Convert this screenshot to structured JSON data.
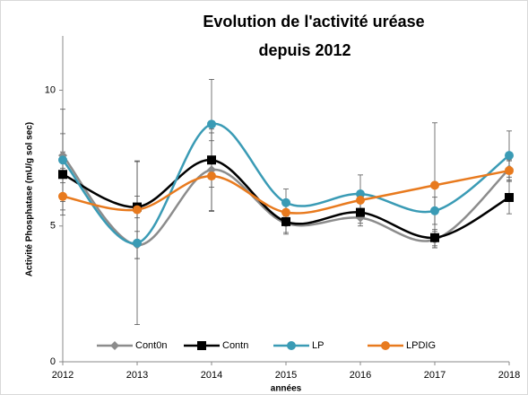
{
  "chart_data": {
    "type": "line",
    "title": "Evolution de l'activité uréase",
    "subtitle": "depuis 2012",
    "xlabel": "années",
    "ylabel": "Activité Phosphatase  (mU/g sol sec)",
    "categories": [
      "2012",
      "2013",
      "2014",
      "2015",
      "2016",
      "2017",
      "2018"
    ],
    "series": [
      {
        "name": "Cont0n",
        "color": "#8c8c8c",
        "marker": "diamond",
        "values": [
          7.6,
          4.3,
          7.07,
          5.1,
          5.3,
          4.5,
          7.1
        ],
        "errors": [
          1.7,
          0.5,
          1.5,
          0.4,
          0.3,
          0.3,
          0.3
        ]
      },
      {
        "name": "Contn",
        "color": "#000000",
        "marker": "square",
        "values": [
          6.9,
          5.7,
          7.43,
          5.16,
          5.5,
          4.57,
          6.05
        ],
        "errors": [
          1.5,
          0.4,
          1.0,
          0.4,
          0.4,
          0.3,
          0.6
        ]
      },
      {
        "name": "LP",
        "color": "#3a9bb5",
        "marker": "circle",
        "values": [
          7.43,
          4.37,
          8.75,
          5.86,
          6.18,
          5.56,
          7.6
        ],
        "errors": [
          0.3,
          3.0,
          1.65,
          0.5,
          0.7,
          0.5,
          0.9
        ]
      },
      {
        "name": "LPDIG",
        "color": "#e87a1e",
        "marker": "circle",
        "values": [
          6.09,
          5.6,
          6.84,
          5.5,
          5.95,
          6.5,
          7.04
        ],
        "errors": [
          0.5,
          1.8,
          1.3,
          0.4,
          0.3,
          2.3,
          0.4
        ]
      }
    ],
    "ylim": [
      0,
      12
    ],
    "yticks": [
      0,
      5,
      10
    ],
    "grid": false,
    "legend": "bottom",
    "smooth": true
  }
}
